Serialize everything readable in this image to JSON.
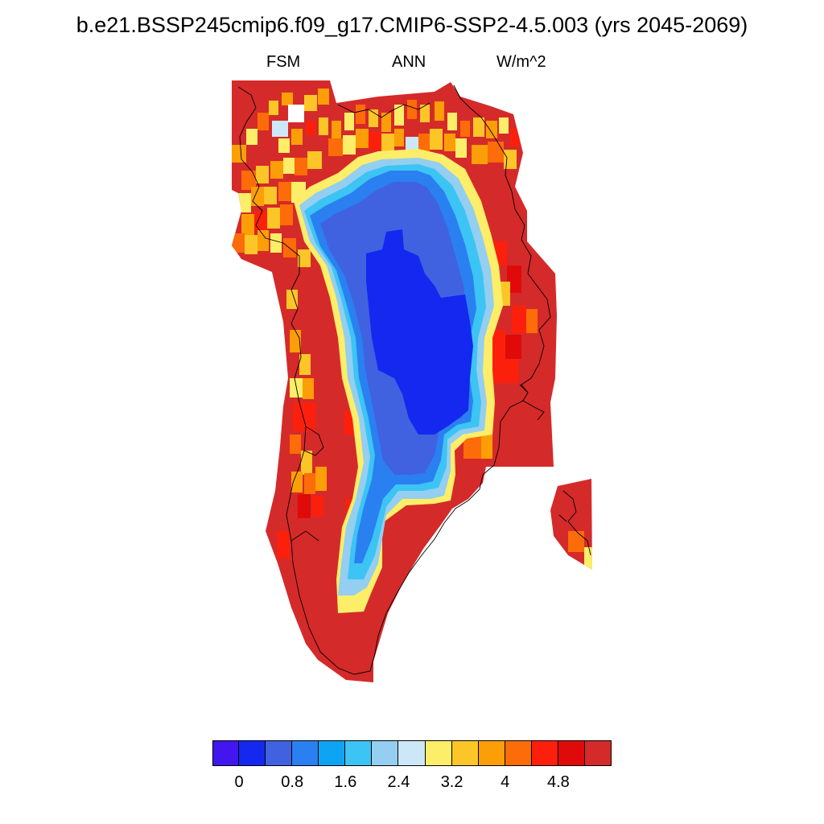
{
  "title": "b.e21.BSSP245cmip6.f09_g17.CMIP6-SSP2-4.5.003 (yrs 2045-2069)",
  "subtitle_left": "FSM",
  "subtitle_center": "ANN",
  "subtitle_right": "W/m^2",
  "colorbar": {
    "colors": [
      "#4216ee",
      "#1428f0",
      "#4062e0",
      "#2a80f0",
      "#0ea4f4",
      "#3cc4f4",
      "#94cef0",
      "#cce8f8",
      "#fcee68",
      "#fcc628",
      "#fc9e08",
      "#fc6c08",
      "#fc200c",
      "#e00a0a",
      "#d52a2a"
    ],
    "tick_labels": [
      "0",
      "0.8",
      "1.6",
      "2.4",
      "3.2",
      "4",
      "4.8"
    ]
  },
  "colors": {
    "high_red": "#d52a2a",
    "low_blue": "#1428f0",
    "coastline": "#000000"
  }
}
